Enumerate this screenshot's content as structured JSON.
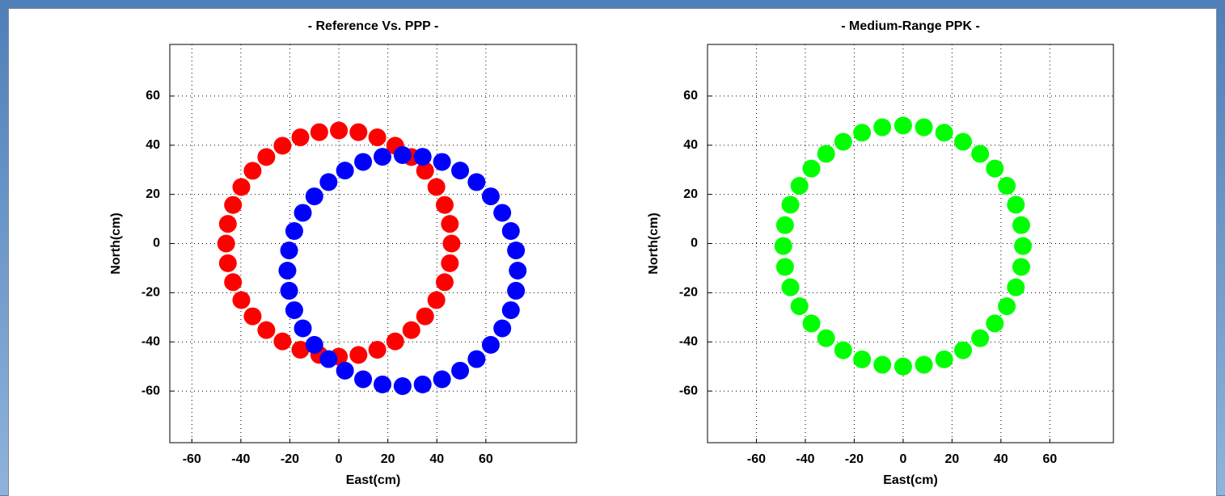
{
  "chart_data": [
    {
      "type": "scatter",
      "title": "- Reference Vs. PPP -",
      "xlabel": "East(cm)",
      "ylabel": "North(cm)",
      "xlim": [
        -69,
        97
      ],
      "ylim": [
        -81,
        81
      ],
      "xticks": [
        -60,
        -40,
        -20,
        0,
        20,
        40,
        60
      ],
      "yticks": [
        -60,
        -40,
        -20,
        0,
        20,
        40,
        60
      ],
      "grid": true,
      "series": [
        {
          "color": "#ff0000",
          "x": [
            46,
            45.3,
            43.2,
            39.8,
            35.2,
            29.6,
            23,
            15.7,
            8,
            0,
            -8,
            -15.7,
            -23,
            -29.6,
            -35.2,
            -39.8,
            -43.2,
            -45.3,
            -46,
            -45.3,
            -43.2,
            -39.8,
            -35.2,
            -29.6,
            -23,
            -15.7,
            -8,
            0,
            8,
            15.7,
            23,
            29.6,
            35.2,
            39.8,
            43.2,
            45.3
          ],
          "values": [
            0,
            8,
            15.7,
            23,
            29.6,
            35.2,
            39.8,
            43.2,
            45.3,
            46,
            45.3,
            43.2,
            39.8,
            35.2,
            29.6,
            23,
            15.7,
            8,
            0,
            -8,
            -15.7,
            -23,
            -29.6,
            -35.2,
            -39.8,
            -43.2,
            -45.3,
            -46,
            -45.3,
            -43.2,
            -39.8,
            -35.2,
            -29.6,
            -23,
            -15.7,
            -8
          ]
        },
        {
          "color": "#0000ff",
          "x": [
            73,
            72.3,
            70.2,
            66.7,
            62,
            56.2,
            49.5,
            42.1,
            34.2,
            26,
            17.8,
            9.9,
            2.5,
            -4.2,
            -10,
            -14.7,
            -18.2,
            -20.3,
            -21,
            -20.3,
            -18.2,
            -14.7,
            -10,
            -4.2,
            2.5,
            9.9,
            17.8,
            26,
            34.2,
            42.1,
            49.5,
            56.2,
            62,
            66.7,
            70.2,
            72.3
          ],
          "values": [
            -11,
            -2.8,
            5.1,
            12.5,
            19.2,
            25,
            29.7,
            33.2,
            35.3,
            36,
            35.3,
            33.2,
            29.7,
            25,
            19.2,
            12.5,
            5.1,
            -2.8,
            -11,
            -19.2,
            -27.1,
            -34.5,
            -41.2,
            -47,
            -51.7,
            -55.2,
            -57.3,
            -58,
            -57.3,
            -55.2,
            -51.7,
            -47,
            -41.2,
            -34.5,
            -27.1,
            -19.2
          ]
        }
      ]
    },
    {
      "type": "scatter",
      "title": "- Medium-Range PPK -",
      "xlabel": "East(cm)",
      "ylabel": "North(cm)",
      "xlim": [
        -80,
        86
      ],
      "ylim": [
        -81,
        81
      ],
      "xticks": [
        -60,
        -40,
        -20,
        0,
        20,
        40,
        60
      ],
      "yticks": [
        -60,
        -40,
        -20,
        0,
        20,
        40,
        60
      ],
      "grid": true,
      "series": [
        {
          "color": "#00ff00",
          "x": [
            49,
            48.3,
            46.1,
            42.4,
            37.5,
            31.5,
            24.5,
            16.8,
            8.5,
            0,
            -8.5,
            -16.8,
            -24.5,
            -31.5,
            -37.5,
            -42.4,
            -46.1,
            -48.3,
            -49,
            -48.3,
            -46.1,
            -42.4,
            -37.5,
            -31.5,
            -24.5,
            -16.8,
            -8.5,
            0,
            8.5,
            16.8,
            24.5,
            31.5,
            37.5,
            42.4,
            46.1,
            48.3
          ],
          "values": [
            -1,
            7.5,
            15.8,
            23.5,
            30.5,
            36.5,
            41.4,
            45.1,
            47.3,
            48,
            47.3,
            45.1,
            41.4,
            36.5,
            30.5,
            23.5,
            15.8,
            7.5,
            -1,
            -9.5,
            -17.8,
            -25.5,
            -32.5,
            -38.5,
            -43.4,
            -47.1,
            -49.3,
            -50,
            -49.3,
            -47.1,
            -43.4,
            -38.5,
            -32.5,
            -25.5,
            -17.8,
            -9.5
          ]
        }
      ]
    }
  ]
}
